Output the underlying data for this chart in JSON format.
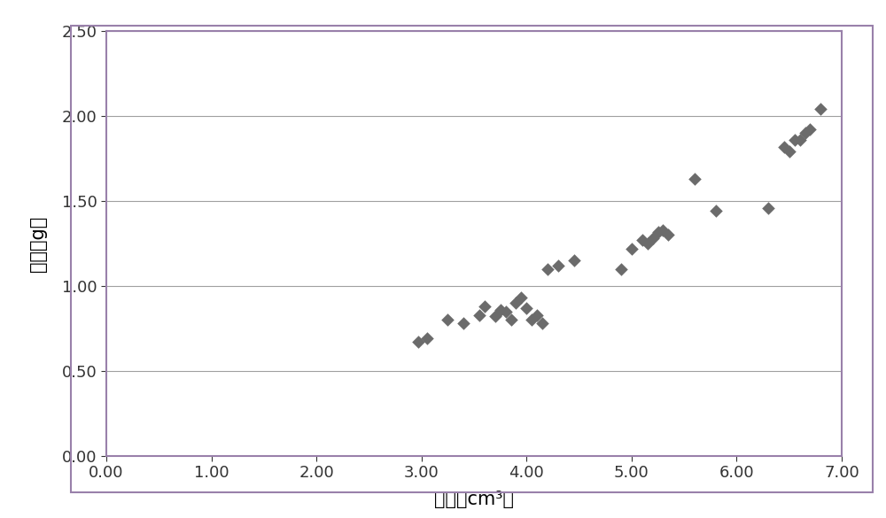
{
  "x_data": [
    2.97,
    3.05,
    3.25,
    3.4,
    3.55,
    3.6,
    3.7,
    3.75,
    3.8,
    3.85,
    3.9,
    3.95,
    4.0,
    4.05,
    4.1,
    4.15,
    4.2,
    4.3,
    4.45,
    4.9,
    5.0,
    5.1,
    5.15,
    5.2,
    5.25,
    5.3,
    5.35,
    5.6,
    5.8,
    6.3,
    6.45,
    6.5,
    6.55,
    6.6,
    6.65,
    6.7,
    6.8
  ],
  "y_data": [
    0.67,
    0.69,
    0.8,
    0.78,
    0.83,
    0.88,
    0.82,
    0.86,
    0.85,
    0.8,
    0.9,
    0.93,
    0.87,
    0.8,
    0.83,
    0.78,
    1.1,
    1.12,
    1.15,
    1.1,
    1.22,
    1.27,
    1.25,
    1.28,
    1.32,
    1.33,
    1.3,
    1.63,
    1.44,
    1.46,
    1.82,
    1.79,
    1.86,
    1.86,
    1.9,
    1.92,
    2.04
  ],
  "marker_color": "#6b6b6b",
  "marker_size": 55,
  "xlabel": "体积（cm³）",
  "ylabel_line1": "质",
  "ylabel_line2": "量",
  "ylabel_line3": "（",
  "ylabel_line4": "g",
  "ylabel_line5": "）",
  "xlim": [
    0.0,
    7.0
  ],
  "ylim": [
    0.0,
    2.5
  ],
  "xticks": [
    0.0,
    1.0,
    2.0,
    3.0,
    4.0,
    5.0,
    6.0,
    7.0
  ],
  "yticks": [
    0.0,
    0.5,
    1.0,
    1.5,
    2.0,
    2.5
  ],
  "xtick_labels": [
    "0.00",
    "1.00",
    "2.00",
    "3.00",
    "4.00",
    "5.00",
    "6.00",
    "7.00"
  ],
  "ytick_labels": [
    "0.00",
    "0.50",
    "1.00",
    "1.50",
    "2.00",
    "2.50"
  ],
  "xlabel_fontsize": 15,
  "ylabel_fontsize": 15,
  "tick_fontsize": 13,
  "grid_color": "#a0a0a0",
  "border_color": "#9980aa",
  "bg_color": "#ffffff",
  "outer_border_color": "#9980aa"
}
